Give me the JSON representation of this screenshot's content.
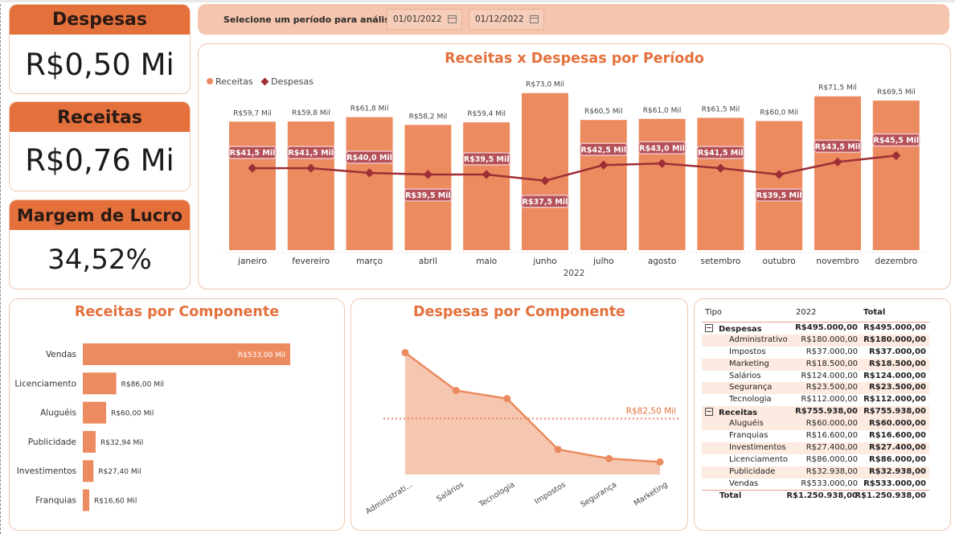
{
  "kpis": {
    "despesas": {
      "label": "Despesas",
      "value": "R$0,50 Mi"
    },
    "receitas": {
      "label": "Receitas",
      "value": "R$0,76 Mi"
    },
    "margem": {
      "label": "Margem de Lucro",
      "value": "34,52%"
    }
  },
  "filter": {
    "label": "Selecione um período para análise:",
    "start_date": "01/01/2022",
    "end_date": "01/12/2022",
    "icon": "calendar-icon"
  },
  "colors": {
    "accent": "#e4703c",
    "bar": "#ed8b60",
    "line": "#9e2f36",
    "area": "#f6c7b0"
  },
  "chart_data": [
    {
      "type": "bar",
      "title": "Receitas x Despesas por Período",
      "xlabel": "2022",
      "legend": "top-left",
      "categories": [
        "janeiro",
        "fevereiro",
        "março",
        "abril",
        "maio",
        "junho",
        "julho",
        "agosto",
        "setembro",
        "outubro",
        "novembro",
        "dezembro"
      ],
      "series": [
        {
          "name": "Receitas",
          "type": "bar",
          "values": [
            59.7,
            59.8,
            61.8,
            58.2,
            59.4,
            73.0,
            60.5,
            61.0,
            61.5,
            60.0,
            71.5,
            69.5
          ],
          "labels": [
            "R$59,7 Mil",
            "R$59,8 Mil",
            "R$61,8 Mil",
            "R$58,2 Mil",
            "R$59,4 Mil",
            "R$73,0 Mil",
            "R$60,5 Mil",
            "R$61,0 Mil",
            "R$61,5 Mil",
            "R$60,0 Mil",
            "R$71,5 Mil",
            "R$69,5 Mil"
          ]
        },
        {
          "name": "Despesas",
          "type": "line",
          "values": [
            41.5,
            41.5,
            40.0,
            39.5,
            39.5,
            37.5,
            42.5,
            43.0,
            41.5,
            39.5,
            43.5,
            45.5
          ],
          "labels": [
            "R$41,5 Mil",
            "R$41,5 Mil",
            "R$40,0 Mil",
            "R$39,5 Mil",
            "R$39,5 Mil",
            "R$37,5 Mil",
            "R$42,5 Mil",
            "R$43,0 Mil",
            "R$41,5 Mil",
            "R$39,5 Mil",
            "R$43,5 Mil",
            "R$45,5 Mil"
          ],
          "label_position": [
            "above",
            "above",
            "above",
            "below",
            "above",
            "below",
            "above",
            "above",
            "above",
            "below",
            "above",
            "above"
          ]
        }
      ],
      "ylim": [
        0,
        80
      ]
    },
    {
      "type": "bar",
      "orientation": "horizontal",
      "title": "Receitas por Componente",
      "categories": [
        "Vendas",
        "Licenciamento",
        "Aluguéis",
        "Publicidade",
        "Investimentos",
        "Franquias"
      ],
      "values": [
        533.0,
        86.0,
        60.0,
        32.94,
        27.4,
        16.6
      ],
      "labels": [
        "R$533,00 Mil",
        "R$86,00 Mil",
        "R$60,00 Mil",
        "R$32,94 Mil",
        "R$27,40 Mil",
        "R$16,60 Mil"
      ]
    },
    {
      "type": "area",
      "title": "Despesas por Componente",
      "categories": [
        "Administrati...",
        "Salários",
        "Tecnologia",
        "Impostos",
        "Segurança",
        "Marketing"
      ],
      "values": [
        180.0,
        124.0,
        112.0,
        37.0,
        23.5,
        18.5
      ],
      "reference_line": {
        "value": 82.5,
        "label": "R$82,50 Mil"
      },
      "ylim": [
        0,
        190
      ]
    }
  ],
  "matrix": {
    "headers": [
      "Tipo",
      "2022",
      "Total"
    ],
    "groups": [
      {
        "name": "Despesas",
        "y2022": "R$495.000,00",
        "total": "R$495.000,00",
        "rows": [
          {
            "name": "Administrativo",
            "y2022": "R$180.000,00",
            "total": "R$180.000,00"
          },
          {
            "name": "Impostos",
            "y2022": "R$37.000,00",
            "total": "R$37.000,00"
          },
          {
            "name": "Marketing",
            "y2022": "R$18.500,00",
            "total": "R$18.500,00"
          },
          {
            "name": "Salários",
            "y2022": "R$124.000,00",
            "total": "R$124.000,00"
          },
          {
            "name": "Segurança",
            "y2022": "R$23.500,00",
            "total": "R$23.500,00"
          },
          {
            "name": "Tecnologia",
            "y2022": "R$112.000,00",
            "total": "R$112.000,00"
          }
        ]
      },
      {
        "name": "Receitas",
        "y2022": "R$755.938,00",
        "total": "R$755.938,00",
        "rows": [
          {
            "name": "Aluguéis",
            "y2022": "R$60.000,00",
            "total": "R$60.000,00"
          },
          {
            "name": "Franquias",
            "y2022": "R$16.600,00",
            "total": "R$16.600,00"
          },
          {
            "name": "Investimentos",
            "y2022": "R$27.400,00",
            "total": "R$27.400,00"
          },
          {
            "name": "Licenciamento",
            "y2022": "R$86.000,00",
            "total": "R$86.000,00"
          },
          {
            "name": "Publicidade",
            "y2022": "R$32.938,00",
            "total": "R$32.938,00"
          },
          {
            "name": "Vendas",
            "y2022": "R$533.000,00",
            "total": "R$533.000,00"
          }
        ]
      }
    ],
    "total": {
      "name": "Total",
      "y2022": "R$1.250.938,00",
      "total": "R$1.250.938,00"
    }
  }
}
